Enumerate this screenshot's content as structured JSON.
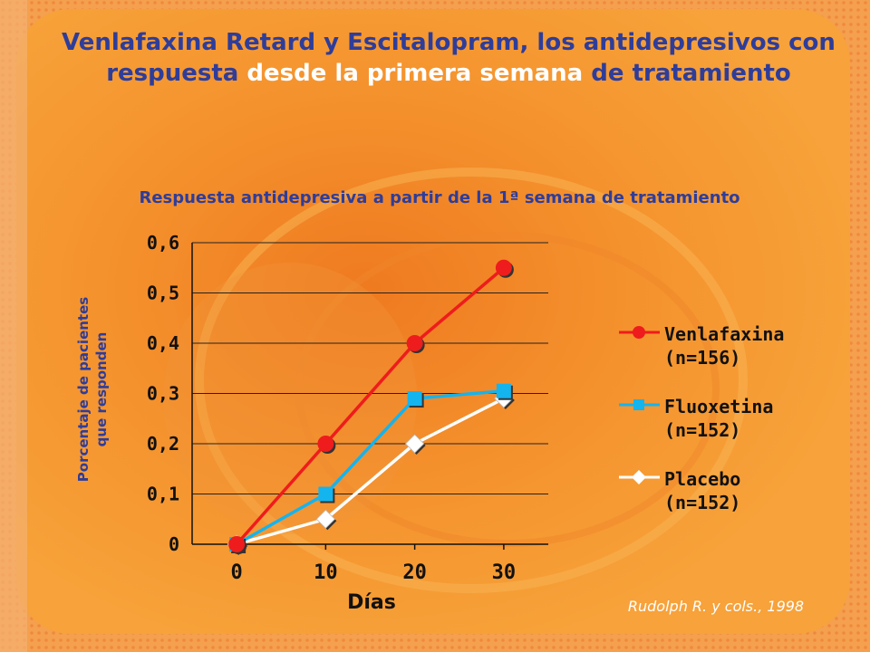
{
  "slide": {
    "title_part1": "Venlafaxina Retard y Escitalopram, los antidepresivos con respuesta ",
    "title_part2": "desde la primera semana",
    "title_part3": " de tratamiento",
    "citation": "Rudolph R. y cols., 1998"
  },
  "colors": {
    "background": "#f7a23a",
    "title": "#2e3d9a",
    "venlafaxina": "#ee1c1c",
    "fluoxetina": "#14b4ee",
    "placebo": "#ffffff"
  },
  "chart_data": {
    "type": "line",
    "title": "Respuesta antidepresiva a partir de la 1ª semana de tratamiento",
    "xlabel": "Días",
    "ylabel_line1": "Porcentaje de pacientes",
    "ylabel_line2": "que responden",
    "x": [
      0,
      10,
      20,
      30
    ],
    "xticks": [
      "0",
      "10",
      "20",
      "30"
    ],
    "yticks": [
      "0",
      "0,1",
      "0,2",
      "0,3",
      "0,4",
      "0,5",
      "0,6"
    ],
    "ylim": [
      0,
      0.6
    ],
    "xlim": [
      -5,
      35
    ],
    "grid": true,
    "legend_position": "right",
    "series": [
      {
        "name": "Venlafaxina",
        "n_label": "(n=156)",
        "marker": "circle",
        "color": "#ee1c1c",
        "values": [
          0,
          0.2,
          0.4,
          0.55
        ]
      },
      {
        "name": "Fluoxetina",
        "n_label": "(n=152)",
        "marker": "square",
        "color": "#14b4ee",
        "values": [
          0,
          0.1,
          0.29,
          0.305
        ]
      },
      {
        "name": "Placebo",
        "n_label": "(n=152)",
        "marker": "diamond",
        "color": "#ffffff",
        "values": [
          0,
          0.05,
          0.2,
          0.29
        ]
      }
    ]
  }
}
